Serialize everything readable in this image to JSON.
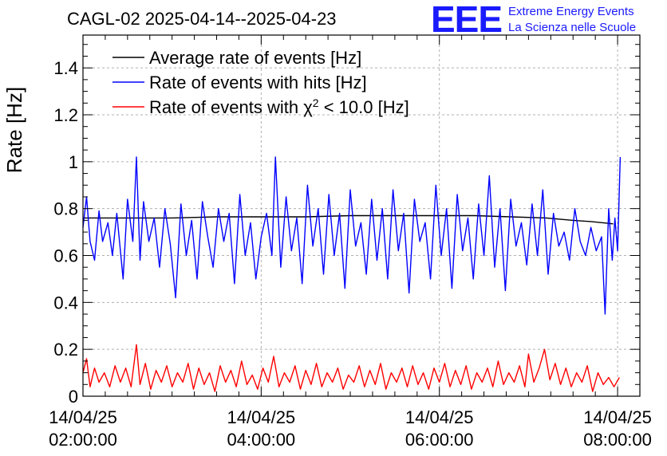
{
  "chart_data": {
    "type": "line",
    "title": "CAGL-02 2025-04-14--2025-04-23",
    "ylabel": "Rate [Hz]",
    "xlabel": "",
    "ylim": [
      0,
      1.54
    ],
    "xlim_hours": [
      2.0,
      8.25
    ],
    "grid": true,
    "legend_placement": "top-left",
    "y_ticks": [
      "0",
      "0.2",
      "0.4",
      "0.6",
      "0.8",
      "1",
      "1.2",
      "1.4"
    ],
    "x_ticks": [
      {
        "hour": 2,
        "date": "14/04/25",
        "time": "02:00:00"
      },
      {
        "hour": 4,
        "date": "14/04/25",
        "time": "04:00:00"
      },
      {
        "hour": 6,
        "date": "14/04/25",
        "time": "06:00:00"
      },
      {
        "hour": 8,
        "date": "14/04/25",
        "time": "08:00:00"
      }
    ],
    "series": [
      {
        "name": "Average rate of events [Hz]",
        "color": "#000000",
        "x": [
          2.0,
          2.3,
          2.5,
          3.0,
          3.5,
          4.0,
          4.5,
          5.0,
          5.5,
          6.0,
          6.4,
          6.8,
          7.2,
          7.5,
          7.7,
          7.95
        ],
        "y": [
          0.76,
          0.76,
          0.76,
          0.76,
          0.765,
          0.765,
          0.765,
          0.77,
          0.77,
          0.77,
          0.77,
          0.765,
          0.76,
          0.75,
          0.745,
          0.735
        ]
      },
      {
        "name": "Rate of events with hits [Hz]",
        "color": "#0000ff",
        "x": [
          2.0,
          2.04,
          2.08,
          2.13,
          2.18,
          2.22,
          2.28,
          2.33,
          2.38,
          2.45,
          2.5,
          2.56,
          2.6,
          2.64,
          2.68,
          2.74,
          2.8,
          2.86,
          2.92,
          2.98,
          3.04,
          3.1,
          3.16,
          3.22,
          3.28,
          3.34,
          3.4,
          3.46,
          3.52,
          3.58,
          3.64,
          3.7,
          3.76,
          3.82,
          3.88,
          3.94,
          4.0,
          4.06,
          4.12,
          4.16,
          4.22,
          4.28,
          4.34,
          4.4,
          4.46,
          4.52,
          4.58,
          4.64,
          4.7,
          4.76,
          4.82,
          4.88,
          4.94,
          5.0,
          5.06,
          5.12,
          5.18,
          5.24,
          5.3,
          5.36,
          5.42,
          5.48,
          5.54,
          5.6,
          5.66,
          5.72,
          5.78,
          5.84,
          5.9,
          5.96,
          6.02,
          6.08,
          6.14,
          6.2,
          6.26,
          6.32,
          6.38,
          6.44,
          6.5,
          6.56,
          6.62,
          6.68,
          6.74,
          6.8,
          6.86,
          6.92,
          6.98,
          7.04,
          7.1,
          7.16,
          7.22,
          7.28,
          7.34,
          7.4,
          7.46,
          7.52,
          7.58,
          7.64,
          7.7,
          7.76,
          7.82,
          7.86,
          7.9,
          7.94,
          7.97,
          8.0,
          8.03
        ],
        "y": [
          0.72,
          0.85,
          0.66,
          0.58,
          0.79,
          0.66,
          0.74,
          0.6,
          0.78,
          0.5,
          0.84,
          0.66,
          1.02,
          0.58,
          0.83,
          0.66,
          0.76,
          0.55,
          0.8,
          0.65,
          0.42,
          0.82,
          0.6,
          0.75,
          0.5,
          0.83,
          0.68,
          0.55,
          0.8,
          0.66,
          0.78,
          0.48,
          0.86,
          0.6,
          0.74,
          0.5,
          0.68,
          0.78,
          0.6,
          1.02,
          0.55,
          0.85,
          0.62,
          0.76,
          0.48,
          0.9,
          0.64,
          0.8,
          0.52,
          0.86,
          0.6,
          0.78,
          0.46,
          0.88,
          0.64,
          0.74,
          0.52,
          0.84,
          0.58,
          0.8,
          0.5,
          0.88,
          0.62,
          0.78,
          0.44,
          0.84,
          0.66,
          0.74,
          0.5,
          0.9,
          0.6,
          0.8,
          0.46,
          0.86,
          0.62,
          0.76,
          0.5,
          0.82,
          0.6,
          0.94,
          0.55,
          0.8,
          0.45,
          0.84,
          0.64,
          0.74,
          0.56,
          0.82,
          0.6,
          0.88,
          0.52,
          0.78,
          0.64,
          0.7,
          0.58,
          0.8,
          0.66,
          0.6,
          0.72,
          0.62,
          0.68,
          0.35,
          0.8,
          0.58,
          0.76,
          0.62,
          1.02
        ]
      },
      {
        "name": "Rate of events with χ² < 10.0 [Hz]",
        "color": "#ff0000",
        "x": [
          2.0,
          2.04,
          2.08,
          2.13,
          2.18,
          2.24,
          2.3,
          2.36,
          2.42,
          2.48,
          2.54,
          2.6,
          2.64,
          2.7,
          2.76,
          2.82,
          2.88,
          2.94,
          3.0,
          3.06,
          3.12,
          3.18,
          3.24,
          3.3,
          3.36,
          3.42,
          3.48,
          3.54,
          3.6,
          3.66,
          3.72,
          3.78,
          3.84,
          3.9,
          3.96,
          4.02,
          4.08,
          4.14,
          4.2,
          4.26,
          4.32,
          4.38,
          4.44,
          4.5,
          4.56,
          4.62,
          4.68,
          4.74,
          4.8,
          4.86,
          4.92,
          4.98,
          5.04,
          5.1,
          5.16,
          5.22,
          5.28,
          5.34,
          5.4,
          5.46,
          5.52,
          5.58,
          5.64,
          5.7,
          5.76,
          5.82,
          5.88,
          5.94,
          6.0,
          6.06,
          6.12,
          6.18,
          6.24,
          6.3,
          6.36,
          6.42,
          6.48,
          6.54,
          6.6,
          6.66,
          6.72,
          6.78,
          6.84,
          6.9,
          6.96,
          7.0,
          7.06,
          7.12,
          7.18,
          7.24,
          7.3,
          7.36,
          7.42,
          7.48,
          7.54,
          7.6,
          7.66,
          7.72,
          7.78,
          7.84,
          7.9,
          7.96,
          8.02
        ],
        "y": [
          0.1,
          0.16,
          0.04,
          0.12,
          0.06,
          0.1,
          0.04,
          0.13,
          0.06,
          0.12,
          0.04,
          0.22,
          0.05,
          0.14,
          0.03,
          0.11,
          0.06,
          0.13,
          0.04,
          0.1,
          0.06,
          0.14,
          0.03,
          0.12,
          0.05,
          0.1,
          0.02,
          0.13,
          0.06,
          0.11,
          0.04,
          0.15,
          0.05,
          0.09,
          0.03,
          0.12,
          0.06,
          0.17,
          0.04,
          0.1,
          0.06,
          0.13,
          0.03,
          0.11,
          0.05,
          0.14,
          0.04,
          0.1,
          0.06,
          0.12,
          0.03,
          0.09,
          0.06,
          0.13,
          0.04,
          0.11,
          0.05,
          0.14,
          0.03,
          0.1,
          0.06,
          0.12,
          0.04,
          0.13,
          0.05,
          0.1,
          0.03,
          0.12,
          0.06,
          0.14,
          0.04,
          0.11,
          0.05,
          0.13,
          0.03,
          0.1,
          0.06,
          0.12,
          0.04,
          0.15,
          0.05,
          0.1,
          0.06,
          0.13,
          0.04,
          0.18,
          0.06,
          0.12,
          0.2,
          0.07,
          0.14,
          0.05,
          0.12,
          0.04,
          0.1,
          0.06,
          0.13,
          0.02,
          0.1,
          0.05,
          0.08,
          0.04,
          0.08
        ]
      }
    ]
  },
  "legend_math": {
    "prefix": "Rate of events with ",
    "chi": "χ",
    "sup": "2",
    "suffix": " < 10.0 [Hz]"
  },
  "logo": {
    "mark": "EEE",
    "line1": "Extreme Energy Events",
    "line2": "La Scienza nelle Scuole"
  }
}
